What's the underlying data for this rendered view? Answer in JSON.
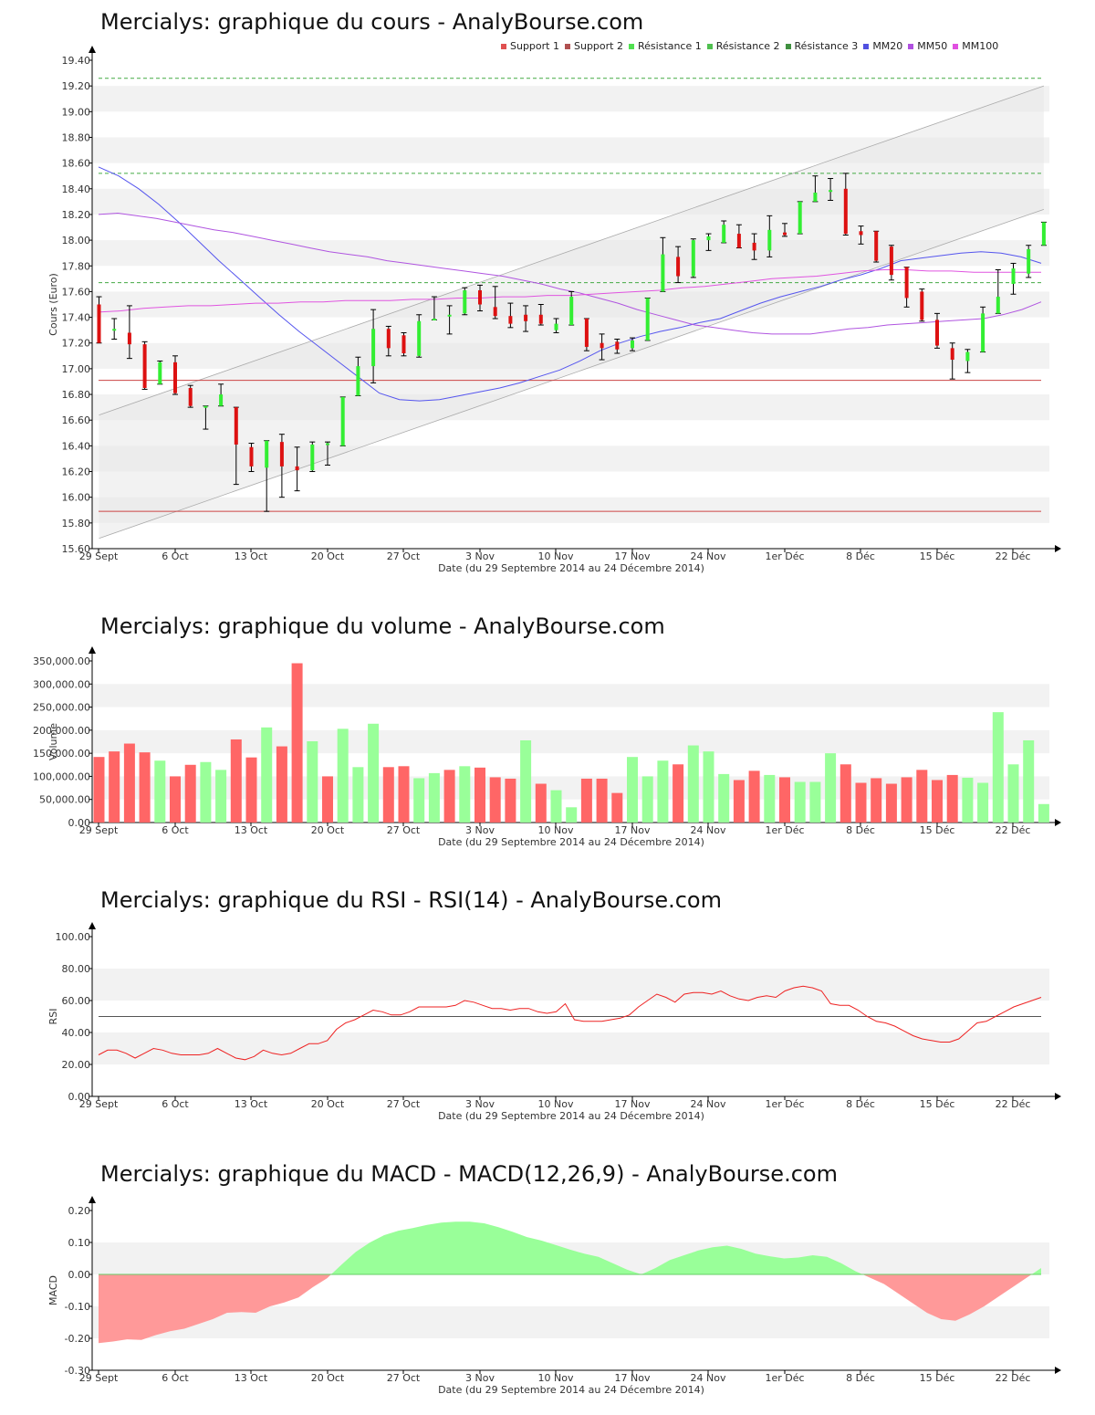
{
  "chart_data": [
    {
      "type": "candlestick",
      "title": "Mercialys: graphique du cours - AnalyBourse.com",
      "ylabel": "Cours (Euro)",
      "xlabel": "Date (du 29 Septembre 2014 au 24 Décembre 2014)",
      "ylim": [
        15.6,
        19.4
      ],
      "yticks": [
        "15.60",
        "15.80",
        "16.00",
        "16.20",
        "16.40",
        "16.60",
        "16.80",
        "17.00",
        "17.20",
        "17.40",
        "17.60",
        "17.80",
        "18.00",
        "18.20",
        "18.40",
        "18.60",
        "18.80",
        "19.00",
        "19.20",
        "19.40"
      ],
      "xticks": [
        "29 Sept",
        "6 Oct",
        "13 Oct",
        "20 Oct",
        "27 Oct",
        "3 Nov",
        "10 Nov",
        "17 Nov",
        "24 Nov",
        "1er Déc",
        "8 Déc",
        "15 Déc",
        "22 Déc"
      ],
      "legend": [
        "Support 1",
        "Support 2",
        "Résistance 1",
        "Résistance 2",
        "Résistance 3",
        "MM20",
        "MM50",
        "MM100"
      ],
      "legend_colors": [
        "#e05050",
        "#b05050",
        "#50e050",
        "#50c050",
        "#409040",
        "#5050e0",
        "#b050e0",
        "#e050e0"
      ],
      "support_levels": [
        16.91,
        15.89
      ],
      "resistance_levels": [
        17.67,
        18.52,
        19.26
      ],
      "trend_channel": {
        "lower": [
          [
            0,
            15.68
          ],
          [
            62,
            18.24
          ]
        ],
        "upper": [
          [
            0,
            16.64
          ],
          [
            62,
            19.2
          ]
        ]
      },
      "candles": [
        {
          "o": 17.5,
          "h": 17.56,
          "l": 17.2,
          "c": 17.2
        },
        {
          "o": 17.31,
          "h": 17.39,
          "l": 17.23,
          "c": 17.31
        },
        {
          "o": 17.28,
          "h": 17.49,
          "l": 17.08,
          "c": 17.19
        },
        {
          "o": 17.19,
          "h": 17.21,
          "l": 16.84,
          "c": 16.85
        },
        {
          "o": 16.88,
          "h": 17.06,
          "l": 16.88,
          "c": 17.05
        },
        {
          "o": 17.05,
          "h": 17.1,
          "l": 16.8,
          "c": 16.81
        },
        {
          "o": 16.85,
          "h": 16.87,
          "l": 16.7,
          "c": 16.71
        },
        {
          "o": 16.71,
          "h": 16.71,
          "l": 16.53,
          "c": 16.71
        },
        {
          "o": 16.71,
          "h": 16.88,
          "l": 16.71,
          "c": 16.8
        },
        {
          "o": 16.7,
          "h": 16.7,
          "l": 16.1,
          "c": 16.41
        },
        {
          "o": 16.39,
          "h": 16.42,
          "l": 16.2,
          "c": 16.24
        },
        {
          "o": 16.23,
          "h": 16.44,
          "l": 15.89,
          "c": 16.44
        },
        {
          "o": 16.43,
          "h": 16.49,
          "l": 16.0,
          "c": 16.24
        },
        {
          "o": 16.24,
          "h": 16.39,
          "l": 16.05,
          "c": 16.21
        },
        {
          "o": 16.21,
          "h": 16.43,
          "l": 16.2,
          "c": 16.41
        },
        {
          "o": 16.42,
          "h": 16.43,
          "l": 16.25,
          "c": 16.42
        },
        {
          "o": 16.4,
          "h": 16.78,
          "l": 16.4,
          "c": 16.78
        },
        {
          "o": 16.79,
          "h": 17.09,
          "l": 16.79,
          "c": 17.02
        },
        {
          "o": 17.02,
          "h": 17.46,
          "l": 16.89,
          "c": 17.31
        },
        {
          "o": 17.31,
          "h": 17.33,
          "l": 17.1,
          "c": 17.16
        },
        {
          "o": 17.26,
          "h": 17.28,
          "l": 17.1,
          "c": 17.12
        },
        {
          "o": 17.1,
          "h": 17.42,
          "l": 17.09,
          "c": 17.37
        },
        {
          "o": 17.38,
          "h": 17.56,
          "l": 17.38,
          "c": 17.39
        },
        {
          "o": 17.42,
          "h": 17.49,
          "l": 17.27,
          "c": 17.42
        },
        {
          "o": 17.43,
          "h": 17.63,
          "l": 17.42,
          "c": 17.61
        },
        {
          "o": 17.61,
          "h": 17.65,
          "l": 17.45,
          "c": 17.5
        },
        {
          "o": 17.48,
          "h": 17.64,
          "l": 17.39,
          "c": 17.41
        },
        {
          "o": 17.41,
          "h": 17.51,
          "l": 17.32,
          "c": 17.35
        },
        {
          "o": 17.42,
          "h": 17.49,
          "l": 17.29,
          "c": 17.37
        },
        {
          "o": 17.42,
          "h": 17.5,
          "l": 17.34,
          "c": 17.35
        },
        {
          "o": 17.3,
          "h": 17.39,
          "l": 17.28,
          "c": 17.35
        },
        {
          "o": 17.34,
          "h": 17.6,
          "l": 17.34,
          "c": 17.56
        },
        {
          "o": 17.39,
          "h": 17.39,
          "l": 17.14,
          "c": 17.17
        },
        {
          "o": 17.2,
          "h": 17.27,
          "l": 17.07,
          "c": 17.16
        },
        {
          "o": 17.21,
          "h": 17.23,
          "l": 17.12,
          "c": 17.15
        },
        {
          "o": 17.16,
          "h": 17.24,
          "l": 17.14,
          "c": 17.22
        },
        {
          "o": 17.22,
          "h": 17.55,
          "l": 17.22,
          "c": 17.55
        },
        {
          "o": 17.6,
          "h": 18.02,
          "l": 17.6,
          "c": 17.89
        },
        {
          "o": 17.87,
          "h": 17.95,
          "l": 17.67,
          "c": 17.72
        },
        {
          "o": 17.72,
          "h": 18.01,
          "l": 17.71,
          "c": 18.0
        },
        {
          "o": 18.0,
          "h": 18.05,
          "l": 17.92,
          "c": 18.03
        },
        {
          "o": 17.98,
          "h": 18.15,
          "l": 17.98,
          "c": 18.12
        },
        {
          "o": 18.05,
          "h": 18.12,
          "l": 17.94,
          "c": 17.94
        },
        {
          "o": 17.98,
          "h": 18.05,
          "l": 17.85,
          "c": 17.92
        },
        {
          "o": 17.92,
          "h": 18.19,
          "l": 17.87,
          "c": 18.08
        },
        {
          "o": 18.06,
          "h": 18.13,
          "l": 18.03,
          "c": 18.04
        },
        {
          "o": 18.05,
          "h": 18.3,
          "l": 18.05,
          "c": 18.3
        },
        {
          "o": 18.3,
          "h": 18.5,
          "l": 18.3,
          "c": 18.37
        },
        {
          "o": 18.39,
          "h": 18.48,
          "l": 18.31,
          "c": 18.39
        },
        {
          "o": 18.4,
          "h": 18.52,
          "l": 18.04,
          "c": 18.05
        },
        {
          "o": 18.07,
          "h": 18.11,
          "l": 17.97,
          "c": 18.04
        },
        {
          "o": 18.07,
          "h": 18.07,
          "l": 17.83,
          "c": 17.84
        },
        {
          "o": 17.95,
          "h": 17.96,
          "l": 17.69,
          "c": 17.73
        },
        {
          "o": 17.79,
          "h": 17.79,
          "l": 17.48,
          "c": 17.55
        },
        {
          "o": 17.6,
          "h": 17.62,
          "l": 17.37,
          "c": 17.38
        },
        {
          "o": 17.38,
          "h": 17.43,
          "l": 17.16,
          "c": 17.18
        },
        {
          "o": 17.16,
          "h": 17.2,
          "l": 16.92,
          "c": 17.07
        },
        {
          "o": 17.06,
          "h": 17.15,
          "l": 16.97,
          "c": 17.13
        },
        {
          "o": 17.13,
          "h": 17.48,
          "l": 17.13,
          "c": 17.43
        },
        {
          "o": 17.43,
          "h": 17.77,
          "l": 17.43,
          "c": 17.56
        },
        {
          "o": 17.66,
          "h": 17.82,
          "l": 17.58,
          "c": 17.78
        },
        {
          "o": 17.74,
          "h": 17.96,
          "l": 17.71,
          "c": 17.93
        },
        {
          "o": 17.96,
          "h": 18.14,
          "l": 17.96,
          "c": 18.14
        }
      ],
      "mm20": [
        18.57,
        18.5,
        18.4,
        18.28,
        18.14,
        17.99,
        17.84,
        17.7,
        17.56,
        17.42,
        17.29,
        17.17,
        17.05,
        16.93,
        16.81,
        16.76,
        16.75,
        16.76,
        16.79,
        16.82,
        16.85,
        16.89,
        16.94,
        16.99,
        17.06,
        17.14,
        17.2,
        17.25,
        17.29,
        17.32,
        17.36,
        17.39,
        17.45,
        17.51,
        17.56,
        17.6,
        17.64,
        17.69,
        17.73,
        17.78,
        17.84,
        17.86,
        17.88,
        17.9,
        17.91,
        17.9,
        17.87,
        17.82
      ],
      "mm20_x0": 0,
      "mm50": [
        18.2,
        18.21,
        18.19,
        18.17,
        18.14,
        18.11,
        18.08,
        18.06,
        18.03,
        18.0,
        17.97,
        17.94,
        17.91,
        17.89,
        17.87,
        17.84,
        17.82,
        17.8,
        17.78,
        17.76,
        17.74,
        17.72,
        17.69,
        17.66,
        17.62,
        17.59,
        17.55,
        17.51,
        17.46,
        17.42,
        17.38,
        17.34,
        17.32,
        17.3,
        17.28,
        17.27,
        17.27,
        17.27,
        17.29,
        17.31,
        17.32,
        17.34,
        17.35,
        17.36,
        17.37,
        17.38,
        17.39,
        17.42,
        17.46,
        17.52
      ],
      "mm50_x0": 0,
      "mm100": [
        17.44,
        17.45,
        17.47,
        17.48,
        17.49,
        17.49,
        17.5,
        17.51,
        17.51,
        17.52,
        17.52,
        17.53,
        17.53,
        17.53,
        17.54,
        17.54,
        17.55,
        17.55,
        17.56,
        17.56,
        17.57,
        17.57,
        17.58,
        17.59,
        17.6,
        17.61,
        17.63,
        17.64,
        17.66,
        17.68,
        17.7,
        17.71,
        17.72,
        17.74,
        17.76,
        17.77,
        17.77,
        17.76,
        17.76,
        17.75,
        17.75,
        17.75,
        17.75
      ],
      "mm100_x0": 0
    },
    {
      "type": "bar",
      "title": "Mercialys: graphique du volume - AnalyBourse.com",
      "ylabel": "Volume",
      "xlabel": "Date (du 29 Septembre 2014 au 24 Décembre 2014)",
      "ylim": [
        0,
        350000
      ],
      "yticks": [
        "0.00",
        "50,000.00",
        "100,000.00",
        "150,000.00",
        "200,000.00",
        "250,000.00",
        "300,000.00",
        "350,000.00"
      ],
      "xticks": [
        "29 Sept",
        "6 Oct",
        "13 Oct",
        "20 Oct",
        "27 Oct",
        "3 Nov",
        "10 Nov",
        "17 Nov",
        "24 Nov",
        "1er Déc",
        "8 Déc",
        "15 Déc",
        "22 Déc"
      ],
      "up_color": "#99ff99",
      "down_color": "#ff6666",
      "values": [
        142000,
        154000,
        171000,
        152000,
        134000,
        100000,
        125000,
        131000,
        114000,
        180000,
        141000,
        206000,
        165000,
        345000,
        176000,
        100000,
        203000,
        120000,
        214000,
        120000,
        122000,
        96000,
        107000,
        114000,
        122000,
        119000,
        98000,
        95000,
        178000,
        84000,
        70000,
        33000,
        95000,
        95000,
        64000,
        142000,
        100000,
        134000,
        126000,
        167000,
        154000,
        105000,
        92000,
        112000,
        103000,
        98000,
        88000,
        88000,
        150000,
        126000,
        86000,
        96000,
        84000,
        98000,
        114000,
        92000,
        103000,
        97000,
        86000,
        239000,
        126000,
        178000,
        40000
      ],
      "up": [
        false,
        false,
        false,
        false,
        true,
        false,
        false,
        true,
        true,
        false,
        false,
        true,
        false,
        false,
        true,
        false,
        true,
        true,
        true,
        false,
        false,
        true,
        true,
        false,
        true,
        false,
        false,
        false,
        true,
        false,
        true,
        true,
        false,
        false,
        false,
        true,
        true,
        true,
        false,
        true,
        true,
        true,
        false,
        false,
        true,
        false,
        true,
        true,
        true,
        false,
        false,
        false,
        false,
        false,
        false,
        false,
        false,
        true,
        true,
        true,
        true,
        true,
        true
      ]
    },
    {
      "type": "line",
      "title": "Mercialys: graphique du RSI - RSI(14) - AnalyBourse.com",
      "ylabel": "RSI",
      "xlabel": "Date (du 29 Septembre 2014 au 24 Décembre 2014)",
      "ylim": [
        0,
        100
      ],
      "yticks": [
        "0.00",
        "20.00",
        "40.00",
        "60.00",
        "80.00",
        "100.00"
      ],
      "xticks": [
        "29 Sept",
        "6 Oct",
        "13 Oct",
        "20 Oct",
        "27 Oct",
        "3 Nov",
        "10 Nov",
        "17 Nov",
        "24 Nov",
        "1er Déc",
        "8 Déc",
        "15 Déc",
        "22 Déc"
      ],
      "reference_line": 50,
      "values": [
        26,
        29,
        29,
        27,
        24,
        27,
        30,
        29,
        27,
        26,
        26,
        26,
        27,
        30,
        27,
        24,
        23,
        25,
        29,
        27,
        26,
        27,
        30,
        33,
        33,
        35,
        42,
        46,
        48,
        51,
        54,
        53,
        51,
        51,
        53,
        56,
        56,
        56,
        56,
        57,
        60,
        59,
        57,
        55,
        55,
        54,
        55,
        55,
        53,
        52,
        53,
        58,
        48,
        47,
        47,
        47,
        48,
        49,
        51,
        56,
        60,
        64,
        62,
        59,
        64,
        65,
        65,
        64,
        66,
        63,
        61,
        60,
        62,
        63,
        62,
        66,
        68,
        69,
        68,
        66,
        58,
        57,
        57,
        54,
        50,
        47,
        46,
        44,
        41,
        38,
        36,
        35,
        34,
        34,
        36,
        41,
        46,
        47,
        50,
        53,
        56,
        58,
        60,
        62
      ]
    },
    {
      "type": "area",
      "title": "Mercialys: graphique du MACD - MACD(12,26,9) - AnalyBourse.com",
      "ylabel": "MACD",
      "xlabel": "Date (du 29 Septembre 2014 au 24 Décembre 2014)",
      "ylim": [
        -0.3,
        0.2
      ],
      "yticks": [
        "-0.30",
        "-0.20",
        "-0.10",
        "0.00",
        "0.10",
        "0.20"
      ],
      "xticks": [
        "29 Sept",
        "6 Oct",
        "13 Oct",
        "20 Oct",
        "27 Oct",
        "3 Nov",
        "10 Nov",
        "17 Nov",
        "24 Nov",
        "1er Déc",
        "8 Déc",
        "15 Déc",
        "22 Déc"
      ],
      "positive_color": "#99ff99",
      "negative_color": "#ff9999",
      "values": [
        -0.215,
        -0.21,
        -0.203,
        -0.205,
        -0.19,
        -0.178,
        -0.17,
        -0.155,
        -0.14,
        -0.12,
        -0.118,
        -0.12,
        -0.1,
        -0.088,
        -0.072,
        -0.04,
        -0.012,
        0.03,
        0.07,
        0.1,
        0.123,
        0.137,
        0.145,
        0.155,
        0.162,
        0.165,
        0.165,
        0.16,
        0.148,
        0.133,
        0.117,
        0.106,
        0.092,
        0.078,
        0.065,
        0.055,
        0.035,
        0.015,
        0.0,
        0.02,
        0.045,
        0.06,
        0.075,
        0.085,
        0.09,
        0.08,
        0.065,
        0.057,
        0.05,
        0.053,
        0.06,
        0.055,
        0.035,
        0.01,
        -0.01,
        -0.03,
        -0.06,
        -0.09,
        -0.12,
        -0.14,
        -0.145,
        -0.125,
        -0.1,
        -0.07,
        -0.04,
        -0.01,
        0.02
      ]
    }
  ]
}
